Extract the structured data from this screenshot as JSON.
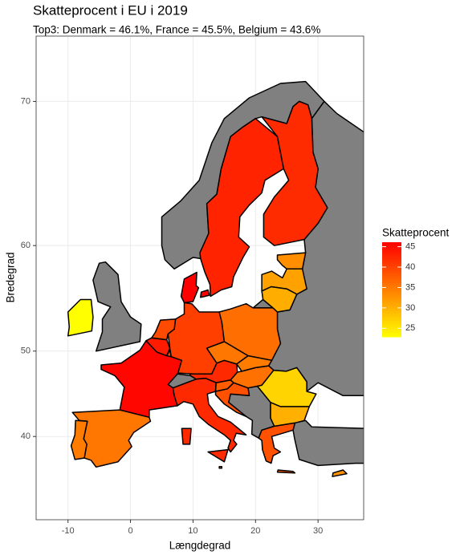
{
  "chart_data": {
    "type": "choropleth",
    "title": "Skatteprocent i EU i 2019",
    "subtitle": "Top3: Denmark = 46.1%, France = 45.5%, Belgium = 43.6%",
    "xlabel": "Længdegrad",
    "ylabel": "Bredegrad",
    "xlim": [
      -15.1,
      37.3
    ],
    "ylim": [
      28.6,
      73.4
    ],
    "xticks": [
      -10,
      0,
      10,
      20,
      30
    ],
    "yticks": [
      40,
      50,
      60,
      70
    ],
    "grid": true,
    "projection": "mercator",
    "values": [
      46.1,
      45.5,
      43.6,
      42.9,
      42.2,
      42.4,
      42.4,
      40.4,
      39.3,
      39.2,
      38.7,
      38.7,
      37.7,
      36.1,
      35.4,
      35.8,
      35.4,
      34.8,
      34.8,
      33.1,
      31.4,
      30.3,
      30.1,
      26.8,
      22.9,
      32.8,
      32.3
    ],
    "missing_color": "#808080",
    "legend": {
      "title": "Skatteprocent",
      "ticks": [
        25,
        30,
        35,
        40,
        45
      ],
      "low_color": "#FFFF00",
      "high_color": "#FF0000",
      "position": "right"
    }
  }
}
